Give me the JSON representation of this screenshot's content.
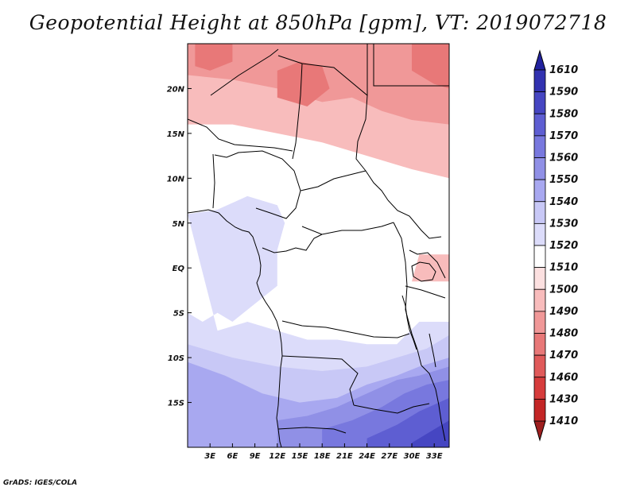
{
  "chart_data": {
    "type": "map-contour",
    "title": "Geopotential Height at 850hPa [gpm], VT: 2019072718",
    "variable": "Geopotential Height",
    "level": "850hPa",
    "units": "gpm",
    "valid_time": "2019072718",
    "lon_range": [
      0,
      35
    ],
    "lat_range": [
      -20,
      25
    ],
    "x_ticks": [
      {
        "value": 3,
        "label": "3E"
      },
      {
        "value": 6,
        "label": "6E"
      },
      {
        "value": 9,
        "label": "9E"
      },
      {
        "value": 12,
        "label": "12E"
      },
      {
        "value": 15,
        "label": "15E"
      },
      {
        "value": 18,
        "label": "18E"
      },
      {
        "value": 21,
        "label": "21E"
      },
      {
        "value": 24,
        "label": "24E"
      },
      {
        "value": 27,
        "label": "27E"
      },
      {
        "value": 30,
        "label": "30E"
      },
      {
        "value": 33,
        "label": "33E"
      }
    ],
    "y_ticks": [
      {
        "value": 20,
        "label": "20N"
      },
      {
        "value": 15,
        "label": "15N"
      },
      {
        "value": 10,
        "label": "10N"
      },
      {
        "value": 5,
        "label": "5N"
      },
      {
        "value": 0,
        "label": "EQ"
      },
      {
        "value": -5,
        "label": "5S"
      },
      {
        "value": -10,
        "label": "10S"
      },
      {
        "value": -15,
        "label": "15S"
      }
    ],
    "colorbar": {
      "levels": [
        1410,
        1430,
        1460,
        1470,
        1480,
        1490,
        1500,
        1510,
        1520,
        1530,
        1540,
        1550,
        1560,
        1570,
        1580,
        1590,
        1610
      ],
      "colors": [
        "#9e1f1f",
        "#c32626",
        "#d63c3c",
        "#e05a5a",
        "#e87878",
        "#f09898",
        "#f8bcbc",
        "#fce0e0",
        "#ffffff",
        "#dcdcfa",
        "#c8c8f6",
        "#a8a8f0",
        "#9090e6",
        "#7878de",
        "#5e5ed2",
        "#4646c2",
        "#3232b0",
        "#22229e"
      ]
    },
    "regions": [
      {
        "id": "sahara-north",
        "level_band": "1490-1500",
        "lon": [
          0,
          35
        ],
        "lat": [
          18,
          25
        ]
      },
      {
        "id": "niger-chad-band",
        "level_band": "1500-1510",
        "lon": [
          0,
          35
        ],
        "lat": [
          12,
          18
        ]
      },
      {
        "id": "east-africa-high",
        "level_band": "1510-1520",
        "lon": [
          28,
          35
        ],
        "lat": [
          -2,
          1
        ]
      },
      {
        "id": "equatorial-plateau",
        "level_band": "1510-1520",
        "lon": [
          0,
          35
        ],
        "lat": [
          -8,
          12
        ]
      },
      {
        "id": "gulf-of-guinea",
        "level_band": "1520-1530",
        "lon": [
          0,
          12
        ],
        "lat": [
          -8,
          6
        ]
      },
      {
        "id": "southern-ocean-side",
        "level_band": "1530-1540",
        "lon": [
          0,
          14
        ],
        "lat": [
          -20,
          -8
        ]
      },
      {
        "id": "south-east-trough",
        "level_band": "1560-1590",
        "lon": [
          18,
          35
        ],
        "lat": [
          -20,
          -12
        ]
      }
    ]
  },
  "footer": {
    "credit": "GrADS: IGES/COLA"
  }
}
